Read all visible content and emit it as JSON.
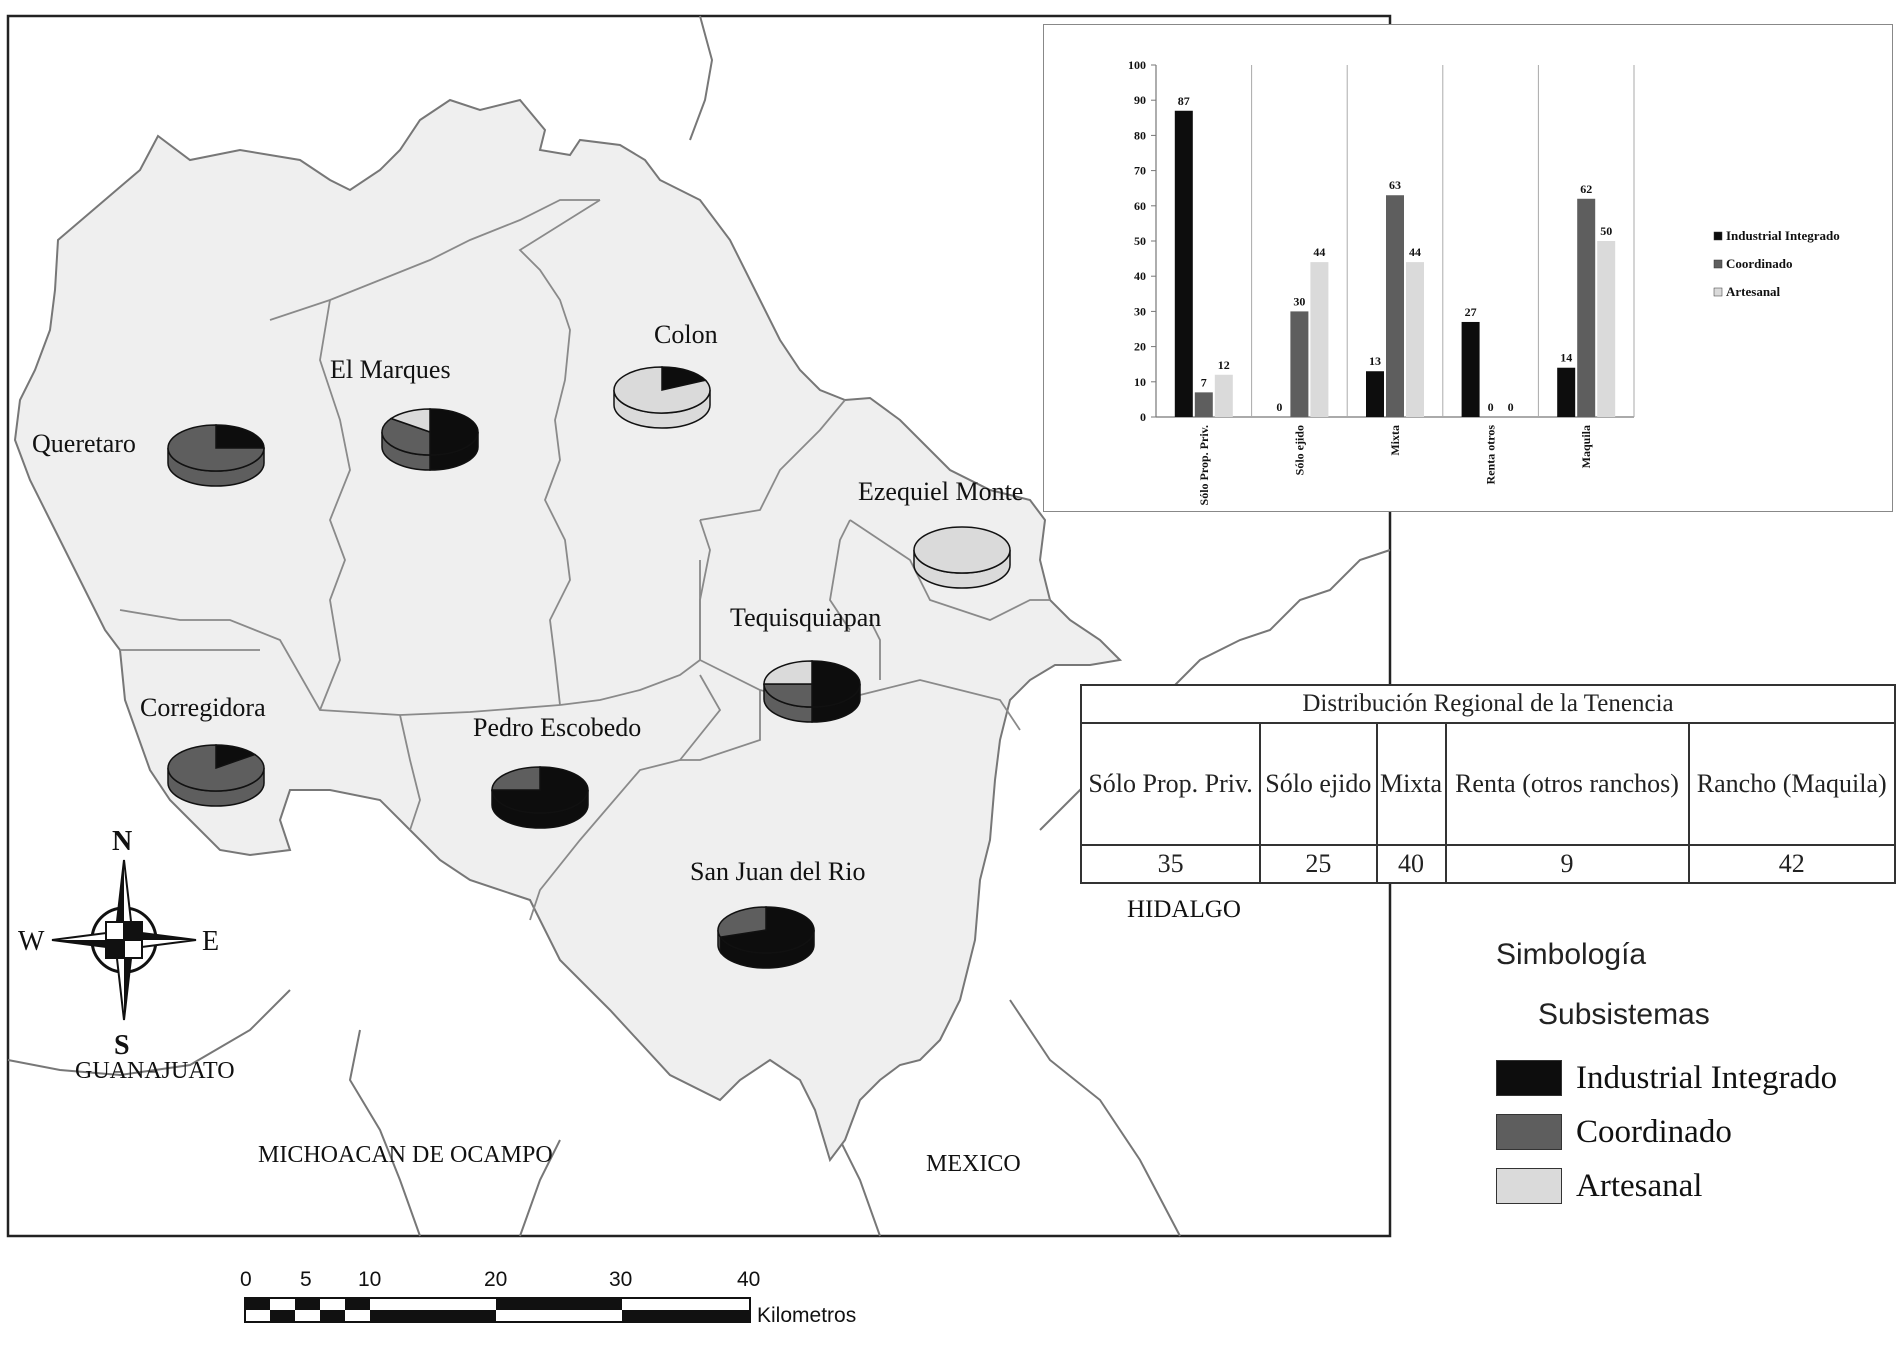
{
  "colors": {
    "industrial": "#0d0d0d",
    "coordinado": "#5e5e5e",
    "artesanal": "#dadada",
    "region_fill": "#efefef"
  },
  "municipalities": [
    {
      "name": "Queretaro",
      "shares": [
        0.25,
        0.75,
        0
      ]
    },
    {
      "name": "El Marques",
      "shares": [
        0.5,
        0.35,
        0.15
      ]
    },
    {
      "name": "Colon",
      "shares": [
        0.18,
        0,
        0.82
      ]
    },
    {
      "name": "Ezequiel Monte",
      "shares": [
        0,
        0,
        1
      ]
    },
    {
      "name": "Tequisquiapan",
      "shares": [
        0.5,
        0.25,
        0.25
      ]
    },
    {
      "name": "Corregidora",
      "shares": [
        0.15,
        0.85,
        0
      ]
    },
    {
      "name": "Pedro Escobedo",
      "shares": [
        0.75,
        0.25,
        0
      ]
    },
    {
      "name": "San Juan del Rio",
      "shares": [
        0.7,
        0.3,
        0
      ]
    }
  ],
  "states": [
    "GUANAJUATO",
    "MICHOACAN DE OCAMPO",
    "MEXICO",
    "HIDALGO"
  ],
  "compass": {
    "n": "N",
    "s": "S",
    "e": "E",
    "w": "W"
  },
  "scale": {
    "ticks": [
      "0",
      "5",
      "10",
      "20",
      "30",
      "40"
    ],
    "unit": "Kilometros"
  },
  "chart_data": {
    "type": "bar",
    "categories": [
      "Sólo Prop. Priv.",
      "Sólo ejido",
      "Mixta",
      "Renta otros",
      "Maquila"
    ],
    "series": [
      {
        "name": "Industrial Integrado",
        "values": [
          87,
          0,
          13,
          27,
          14
        ]
      },
      {
        "name": "Coordinado",
        "values": [
          7,
          30,
          63,
          0,
          62
        ]
      },
      {
        "name": "Artesanal",
        "values": [
          12,
          44,
          44,
          0,
          50
        ]
      }
    ],
    "ylim": [
      0,
      100
    ],
    "yticks": [
      0,
      10,
      20,
      30,
      40,
      50,
      60,
      70,
      80,
      90,
      100
    ],
    "legend": "right",
    "grid": false
  },
  "tenure_table": {
    "title": "Distribución Regional de la Tenencia",
    "headers": [
      "Sólo Prop. Priv.",
      "Sólo ejido",
      "Mixta",
      "Renta (otros ranchos)",
      "Rancho (Maquila)"
    ],
    "values": [
      "35",
      "25",
      "40",
      "9",
      "42"
    ]
  },
  "legend": {
    "title": "Simbología",
    "subtitle": "Subsistemas",
    "items": [
      "Industrial Integrado",
      "Coordinado",
      "Artesanal"
    ]
  }
}
